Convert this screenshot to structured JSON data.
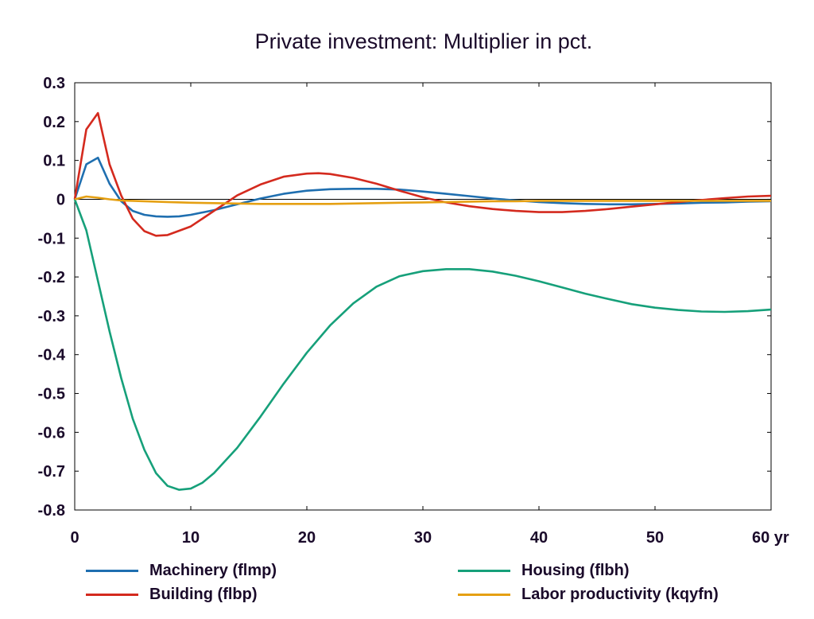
{
  "chart_data": {
    "type": "line",
    "title": "Private investment: Multiplier in pct.",
    "xlabel": "",
    "ylabel": "",
    "xlim": [
      0,
      60
    ],
    "ylim": [
      -0.8,
      0.3
    ],
    "x_ticks": [
      0,
      10,
      20,
      30,
      40,
      50,
      60
    ],
    "x_tick_labels": [
      "0",
      "10",
      "20",
      "30",
      "40",
      "50",
      "60 yr"
    ],
    "y_ticks": [
      0.3,
      0.2,
      0.1,
      0,
      -0.1,
      -0.2,
      -0.3,
      -0.4,
      -0.5,
      -0.6,
      -0.7,
      -0.8
    ],
    "y_tick_labels": [
      "0.3",
      "0.2",
      "0.1",
      "0",
      "-0.1",
      "-0.2",
      "-0.3",
      "-0.4",
      "-0.5",
      "-0.6",
      "-0.7",
      "-0.8"
    ],
    "grid": false,
    "legend_position": "bottom",
    "series": [
      {
        "name": "Machinery (flmp)",
        "color": "#1f6fb0",
        "points": [
          [
            0,
            0
          ],
          [
            1,
            0.09
          ],
          [
            2,
            0.107
          ],
          [
            3,
            0.04
          ],
          [
            4,
            -0.005
          ],
          [
            5,
            -0.03
          ],
          [
            6,
            -0.04
          ],
          [
            7,
            -0.044
          ],
          [
            8,
            -0.045
          ],
          [
            9,
            -0.044
          ],
          [
            10,
            -0.04
          ],
          [
            12,
            -0.028
          ],
          [
            14,
            -0.013
          ],
          [
            16,
            0.002
          ],
          [
            18,
            0.014
          ],
          [
            20,
            0.022
          ],
          [
            22,
            0.026
          ],
          [
            24,
            0.027
          ],
          [
            26,
            0.027
          ],
          [
            28,
            0.025
          ],
          [
            30,
            0.02
          ],
          [
            32,
            0.014
          ],
          [
            34,
            0.008
          ],
          [
            36,
            0.002
          ],
          [
            38,
            -0.003
          ],
          [
            40,
            -0.007
          ],
          [
            42,
            -0.01
          ],
          [
            44,
            -0.012
          ],
          [
            46,
            -0.013
          ],
          [
            48,
            -0.013
          ],
          [
            50,
            -0.012
          ],
          [
            52,
            -0.011
          ],
          [
            54,
            -0.009
          ],
          [
            56,
            -0.008
          ],
          [
            58,
            -0.006
          ],
          [
            60,
            -0.005
          ]
        ]
      },
      {
        "name": "Building (flbp)",
        "color": "#d42a1e",
        "points": [
          [
            0,
            0
          ],
          [
            1,
            0.18
          ],
          [
            2,
            0.222
          ],
          [
            3,
            0.09
          ],
          [
            4,
            0.01
          ],
          [
            5,
            -0.05
          ],
          [
            6,
            -0.082
          ],
          [
            7,
            -0.094
          ],
          [
            8,
            -0.092
          ],
          [
            10,
            -0.07
          ],
          [
            12,
            -0.03
          ],
          [
            14,
            0.01
          ],
          [
            16,
            0.038
          ],
          [
            18,
            0.058
          ],
          [
            20,
            0.066
          ],
          [
            21,
            0.067
          ],
          [
            22,
            0.065
          ],
          [
            24,
            0.055
          ],
          [
            26,
            0.04
          ],
          [
            28,
            0.022
          ],
          [
            30,
            0.005
          ],
          [
            32,
            -0.008
          ],
          [
            34,
            -0.018
          ],
          [
            36,
            -0.025
          ],
          [
            38,
            -0.03
          ],
          [
            40,
            -0.033
          ],
          [
            42,
            -0.033
          ],
          [
            44,
            -0.03
          ],
          [
            46,
            -0.025
          ],
          [
            48,
            -0.019
          ],
          [
            50,
            -0.013
          ],
          [
            52,
            -0.007
          ],
          [
            54,
            -0.002
          ],
          [
            56,
            0.003
          ],
          [
            58,
            0.007
          ],
          [
            60,
            0.009
          ]
        ]
      },
      {
        "name": "Housing (flbh)",
        "color": "#16a07a",
        "points": [
          [
            0,
            0
          ],
          [
            1,
            -0.08
          ],
          [
            2,
            -0.21
          ],
          [
            3,
            -0.34
          ],
          [
            4,
            -0.46
          ],
          [
            5,
            -0.565
          ],
          [
            6,
            -0.645
          ],
          [
            7,
            -0.705
          ],
          [
            8,
            -0.738
          ],
          [
            9,
            -0.748
          ],
          [
            10,
            -0.745
          ],
          [
            11,
            -0.73
          ],
          [
            12,
            -0.705
          ],
          [
            14,
            -0.64
          ],
          [
            16,
            -0.56
          ],
          [
            18,
            -0.475
          ],
          [
            20,
            -0.395
          ],
          [
            22,
            -0.325
          ],
          [
            24,
            -0.268
          ],
          [
            26,
            -0.225
          ],
          [
            28,
            -0.198
          ],
          [
            30,
            -0.185
          ],
          [
            32,
            -0.18
          ],
          [
            34,
            -0.18
          ],
          [
            36,
            -0.186
          ],
          [
            38,
            -0.197
          ],
          [
            40,
            -0.211
          ],
          [
            42,
            -0.227
          ],
          [
            44,
            -0.243
          ],
          [
            46,
            -0.257
          ],
          [
            48,
            -0.27
          ],
          [
            50,
            -0.279
          ],
          [
            52,
            -0.285
          ],
          [
            54,
            -0.289
          ],
          [
            56,
            -0.29
          ],
          [
            58,
            -0.288
          ],
          [
            60,
            -0.284
          ]
        ]
      },
      {
        "name": "Labor productivity (kqyfn)",
        "color": "#e5a013",
        "points": [
          [
            0,
            0
          ],
          [
            1,
            0.007
          ],
          [
            2,
            0.004
          ],
          [
            3,
            0
          ],
          [
            4,
            -0.003
          ],
          [
            6,
            -0.005
          ],
          [
            8,
            -0.007
          ],
          [
            10,
            -0.009
          ],
          [
            12,
            -0.01
          ],
          [
            14,
            -0.011
          ],
          [
            16,
            -0.012
          ],
          [
            18,
            -0.012
          ],
          [
            20,
            -0.012
          ],
          [
            22,
            -0.012
          ],
          [
            24,
            -0.011
          ],
          [
            26,
            -0.01
          ],
          [
            28,
            -0.009
          ],
          [
            30,
            -0.008
          ],
          [
            32,
            -0.007
          ],
          [
            34,
            -0.006
          ],
          [
            36,
            -0.005
          ],
          [
            38,
            -0.005
          ],
          [
            40,
            -0.004
          ],
          [
            44,
            -0.004
          ],
          [
            48,
            -0.004
          ],
          [
            52,
            -0.004
          ],
          [
            56,
            -0.004
          ],
          [
            60,
            -0.004
          ]
        ]
      }
    ]
  }
}
